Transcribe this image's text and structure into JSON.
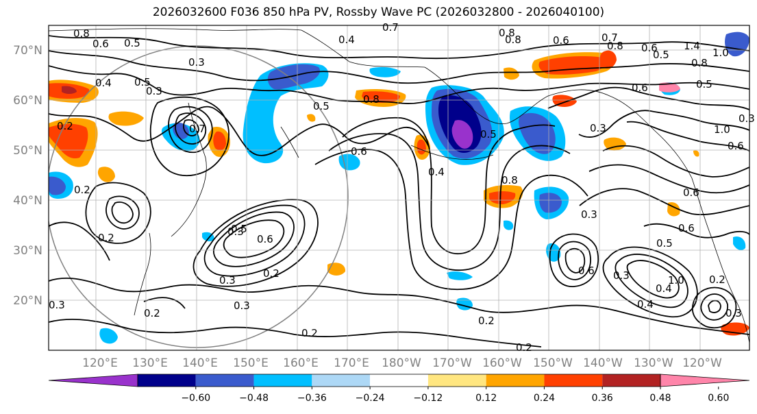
{
  "title": "2026032600 F036 850 hPa PV, Rossby Wave PC (2026032800 - 2026040100)",
  "latitude_labels": [
    "70°N",
    "60°N",
    "50°N",
    "40°N",
    "30°N",
    "20°N"
  ],
  "longitude_labels": [
    "120°E",
    "130°E",
    "140°E",
    "150°E",
    "160°E",
    "170°E",
    "180°W",
    "170°W",
    "160°W",
    "150°W",
    "140°W",
    "130°W",
    "120°W"
  ],
  "colorbar": {
    "labels": [
      "−0.60",
      "−0.48",
      "−0.36",
      "−0.24",
      "−0.12",
      "0.12",
      "0.24",
      "0.36",
      "0.48",
      "0.60"
    ],
    "colors": [
      "#9932cc",
      "#00008b",
      "#3a5bcd",
      "#00bfff",
      "#add8f6",
      "#ffffff",
      "#ffe680",
      "#ffa500",
      "#ff4000",
      "#b22222",
      "#ff85aa"
    ],
    "extend": "both"
  },
  "contour_labels": {
    "c1": "0.8",
    "c2": "0.6",
    "c3": "0.5",
    "c4": "0.4",
    "c5": "0.3",
    "c6": "0.5",
    "c7": "0.4",
    "c8": "0.3",
    "c9": "0.2",
    "c10": "0.7",
    "c11": "0.8",
    "c12": "0.8",
    "c13": "0.6",
    "c14": "0.7",
    "c15": "0.8",
    "c16": "0.6",
    "c17": "0.5",
    "c18": "1.4",
    "c19": "1.0",
    "c20": "0.8",
    "c21": "0.5",
    "c22": "0.6",
    "c23": "0.3",
    "c24": "1.0",
    "c25": "0.5",
    "c26": "0.4",
    "c27": "0.6",
    "c28": "0.7",
    "c29": "0.8",
    "c30": "0.5",
    "c31": "0.6",
    "c32": "0.3",
    "c33": "0.2",
    "c34": "0.2",
    "c35": "0.3",
    "c36": "0.2",
    "c37": "0.3",
    "c38": "0.5",
    "c39": "0.6",
    "c40": "0.6",
    "c41": "0.5",
    "c42": "0.8",
    "c43": "0.2",
    "c44": "0.3",
    "c45": "0.3",
    "c46": "0.4",
    "c47": "0.6",
    "c48": "0.2",
    "c49": "0.2",
    "c50": "0.2",
    "c51": "0.2",
    "c52": "0.3",
    "c53": "0.4",
    "c54": "0.3",
    "c55": "1.0",
    "c56": "0.6",
    "c57": "0.3"
  }
}
